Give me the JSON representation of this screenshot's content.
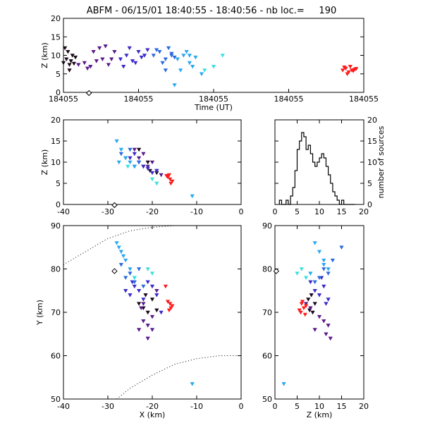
{
  "title": "ABFM - 06/15/01 18:40:55 - 18:40:56 - nb loc.=     190",
  "chart_data": [
    {
      "type": "scatter",
      "panel": "time-height",
      "xlabel": "Time (UT)",
      "ylabel": "Z (km)",
      "ylim": [
        0,
        20
      ],
      "yticks": [
        0,
        5,
        10,
        15,
        20
      ],
      "xtick_labels": [
        "184055",
        "184055",
        "184055",
        "184055",
        "184055"
      ],
      "clusters": [
        {
          "color": "#1a0a1a",
          "t": [
            0.0,
            0.01,
            0.02,
            0.03,
            0.015,
            0.025,
            0.04,
            0.005,
            0.035,
            0.02
          ],
          "z": [
            8,
            9,
            7.5,
            10,
            11,
            8.5,
            9.5,
            12,
            7.8,
            6
          ]
        },
        {
          "color": "#5a1a8a",
          "t": [
            0.05,
            0.07,
            0.09,
            0.11,
            0.13,
            0.15,
            0.17,
            0.12,
            0.08,
            0.14,
            0.1,
            0.16
          ],
          "z": [
            7.5,
            8,
            7,
            8.5,
            9,
            7.5,
            11,
            12,
            6.5,
            12.5,
            11,
            9
          ]
        },
        {
          "color": "#3a2acc",
          "t": [
            0.19,
            0.21,
            0.23,
            0.25,
            0.27,
            0.22,
            0.26,
            0.2,
            0.24,
            0.28
          ],
          "z": [
            9,
            10,
            8.5,
            11,
            10,
            12,
            9.5,
            7,
            8,
            11.5
          ]
        },
        {
          "color": "#2a6ae0",
          "t": [
            0.3,
            0.32,
            0.34,
            0.36,
            0.35,
            0.33,
            0.37,
            0.31,
            0.34,
            0.36
          ],
          "z": [
            10,
            11,
            9,
            10.5,
            12,
            8,
            9.5,
            11.5,
            6,
            10
          ]
        },
        {
          "color": "#2aa8f0",
          "t": [
            0.38,
            0.4,
            0.42,
            0.44,
            0.41,
            0.39,
            0.43,
            0.46,
            0.37,
            0.42
          ],
          "z": [
            9,
            10,
            8,
            9.5,
            11,
            6,
            7,
            5,
            2,
            10
          ]
        },
        {
          "color": "#3ae0e0",
          "t": [
            0.47,
            0.5,
            0.53
          ],
          "z": [
            6,
            7,
            10
          ]
        },
        {
          "color": "#ff1a1a",
          "t": [
            0.93,
            0.94,
            0.95,
            0.96,
            0.97,
            0.955,
            0.945,
            0.965,
            0.975,
            0.935
          ],
          "z": [
            6,
            6.5,
            5.5,
            6,
            6.2,
            7,
            5,
            5.8,
            6.4,
            6.8
          ]
        }
      ],
      "marker_diamond": {
        "t": 0.085,
        "z": 0
      }
    },
    {
      "type": "scatter",
      "panel": "x-height",
      "xlabel": "",
      "ylabel": "Z (km)",
      "xlim": [
        -40,
        0
      ],
      "ylim": [
        0,
        20
      ],
      "xticks": [
        -40,
        -30,
        -20,
        -10,
        0
      ],
      "yticks": [
        0,
        5,
        10,
        15,
        20
      ],
      "clusters": [
        {
          "color": "#1a0a1a",
          "x": [
            -22,
            -21,
            -20.5,
            -23,
            -19
          ],
          "z": [
            9,
            10,
            8,
            13,
            7.5
          ]
        },
        {
          "color": "#5a1a8a",
          "x": [
            -24,
            -22,
            -20,
            -19,
            -21,
            -23,
            -18
          ],
          "z": [
            13,
            12,
            10,
            8,
            9,
            11,
            7
          ]
        },
        {
          "color": "#3a2acc",
          "x": [
            -25,
            -23,
            -22,
            -21,
            -20,
            -24,
            -19
          ],
          "z": [
            11,
            10,
            9,
            8.5,
            7.5,
            12,
            8
          ]
        },
        {
          "color": "#2a6ae0",
          "x": [
            -27,
            -26,
            -25,
            -24,
            -23
          ],
          "z": [
            12,
            11,
            13,
            9,
            10
          ]
        },
        {
          "color": "#2aa8f0",
          "x": [
            -28,
            -27,
            -26,
            -25,
            -24,
            -27.5,
            -11
          ],
          "z": [
            15,
            13,
            11,
            10,
            9,
            10,
            2
          ]
        },
        {
          "color": "#3ae0e0",
          "x": [
            -20,
            -19,
            -25.5
          ],
          "z": [
            6,
            5,
            9
          ]
        },
        {
          "color": "#ff1a1a",
          "x": [
            -16,
            -16.5,
            -15.5,
            -16.2,
            -15.8,
            -16.8
          ],
          "z": [
            6,
            6.5,
            5.5,
            7,
            5,
            6.8
          ]
        }
      ],
      "marker_diamond": {
        "x": -28.5,
        "z": 0
      }
    },
    {
      "type": "histogram",
      "panel": "source-count",
      "xlabel": "",
      "ylabel": "number of sources",
      "xlim": [
        0,
        20
      ],
      "ylim": [
        0,
        20
      ],
      "xticks": [
        0,
        5,
        10,
        15,
        20
      ],
      "yticks": [
        0,
        5,
        10,
        15,
        20
      ],
      "bin_width": 0.5,
      "bin_start": 1,
      "counts": [
        1,
        0,
        0,
        1,
        0,
        2,
        4,
        8,
        13,
        15,
        17,
        16,
        13,
        14,
        12,
        10,
        9,
        10,
        11,
        12,
        11,
        9,
        7,
        5,
        3,
        2,
        1,
        0,
        1,
        0,
        0,
        0,
        0,
        0
      ]
    },
    {
      "type": "scatter",
      "panel": "plan-view",
      "xlabel": "X (km)",
      "ylabel": "Y (km)",
      "xlim": [
        -40,
        0
      ],
      "ylim": [
        50,
        90
      ],
      "xticks": [
        -40,
        -30,
        -20,
        -10,
        0
      ],
      "yticks": [
        50,
        60,
        70,
        80,
        90
      ],
      "clusters": [
        {
          "color": "#1a0a1a",
          "x": [
            -22,
            -21,
            -20,
            -23,
            -19,
            -21.5
          ],
          "y": [
            71,
            70,
            73,
            72,
            70.5,
            74
          ]
        },
        {
          "color": "#5a1a8a",
          "x": [
            -23,
            -22,
            -21,
            -20,
            -19,
            -22.5,
            -21,
            -20,
            -22
          ],
          "y": [
            66,
            68,
            67,
            69,
            75,
            71,
            64,
            66,
            72
          ]
        },
        {
          "color": "#3a2acc",
          "x": [
            -25,
            -24,
            -23,
            -22,
            -21,
            -20,
            -19,
            -26,
            -24.5,
            -18
          ],
          "y": [
            74,
            76,
            75,
            73,
            77,
            76,
            74,
            75,
            77,
            70
          ]
        },
        {
          "color": "#2a6ae0",
          "x": [
            -26,
            -25,
            -24,
            -23,
            -22,
            -27
          ],
          "y": [
            78,
            79,
            77,
            80,
            76,
            81
          ]
        },
        {
          "color": "#2aa8f0",
          "x": [
            -28,
            -27,
            -26,
            -25,
            -24,
            -27.5,
            -26.5,
            -11
          ],
          "y": [
            86,
            84,
            82,
            80,
            78,
            85,
            83,
            53.5
          ]
        },
        {
          "color": "#3ae0e0",
          "x": [
            -21,
            -20,
            -24
          ],
          "y": [
            80,
            79,
            78
          ]
        },
        {
          "color": "#ff1a1a",
          "x": [
            -16,
            -15.8,
            -16.2,
            -15.5,
            -16.5,
            -17
          ],
          "y": [
            72,
            71,
            70.5,
            71.5,
            72.5,
            76
          ]
        }
      ],
      "marker_diamond": {
        "x": -28.5,
        "y": 79.5
      },
      "range_arcs": [
        {
          "points": [
            [
              -40,
              81
            ],
            [
              -35,
              84
            ],
            [
              -30,
              87
            ],
            [
              -25,
              88.8
            ],
            [
              -20,
              89.6
            ],
            [
              -15,
              90
            ],
            [
              -10,
              90.2
            ],
            [
              -5,
              90.2
            ],
            [
              0,
              90.2
            ]
          ]
        },
        {
          "points": [
            [
              -28,
              50
            ],
            [
              -25,
              52.5
            ],
            [
              -20,
              55.5
            ],
            [
              -15,
              58
            ],
            [
              -10,
              59.3
            ],
            [
              -5,
              60
            ],
            [
              0,
              60
            ]
          ]
        }
      ]
    },
    {
      "type": "scatter",
      "panel": "z-y",
      "xlabel": "Z (km)",
      "ylabel": "",
      "xlim": [
        0,
        20
      ],
      "ylim": [
        50,
        90
      ],
      "xticks": [
        0,
        5,
        10,
        15,
        20
      ],
      "yticks": [
        50,
        60,
        70,
        80,
        90
      ],
      "clusters": [
        {
          "color": "#1a0a1a",
          "z": [
            8,
            8.5,
            7.5,
            9,
            7.8,
            8.2
          ],
          "y": [
            71,
            70,
            73,
            72,
            70.5,
            74
          ]
        },
        {
          "color": "#5a1a8a",
          "z": [
            9,
            11,
            12,
            10,
            11.5,
            12.5,
            7,
            8
          ],
          "y": [
            66,
            68,
            67,
            69,
            65,
            64,
            72,
            71
          ]
        },
        {
          "color": "#3a2acc",
          "z": [
            10,
            11,
            9,
            12,
            8,
            10.5,
            11.5
          ],
          "y": [
            74,
            76,
            75,
            73,
            77,
            78,
            72
          ]
        },
        {
          "color": "#2a6ae0",
          "z": [
            10,
            11,
            9,
            12,
            13,
            15
          ],
          "y": [
            78,
            80,
            77,
            79,
            82,
            85
          ]
        },
        {
          "color": "#2aa8f0",
          "z": [
            9,
            10,
            11,
            12,
            8,
            11,
            2
          ],
          "y": [
            86,
            84,
            82,
            80,
            79,
            81,
            53.5
          ]
        },
        {
          "color": "#3ae0e0",
          "z": [
            6,
            5,
            7
          ],
          "y": [
            80,
            79,
            78
          ]
        },
        {
          "color": "#ff1a1a",
          "z": [
            6,
            6.5,
            5.5,
            7,
            6.2,
            5.8,
            6.8
          ],
          "y": [
            72,
            71,
            70.5,
            71.5,
            72.5,
            70,
            69.5
          ]
        }
      ],
      "marker_diamond": {
        "z": 0.3,
        "y": 79.5
      }
    }
  ]
}
